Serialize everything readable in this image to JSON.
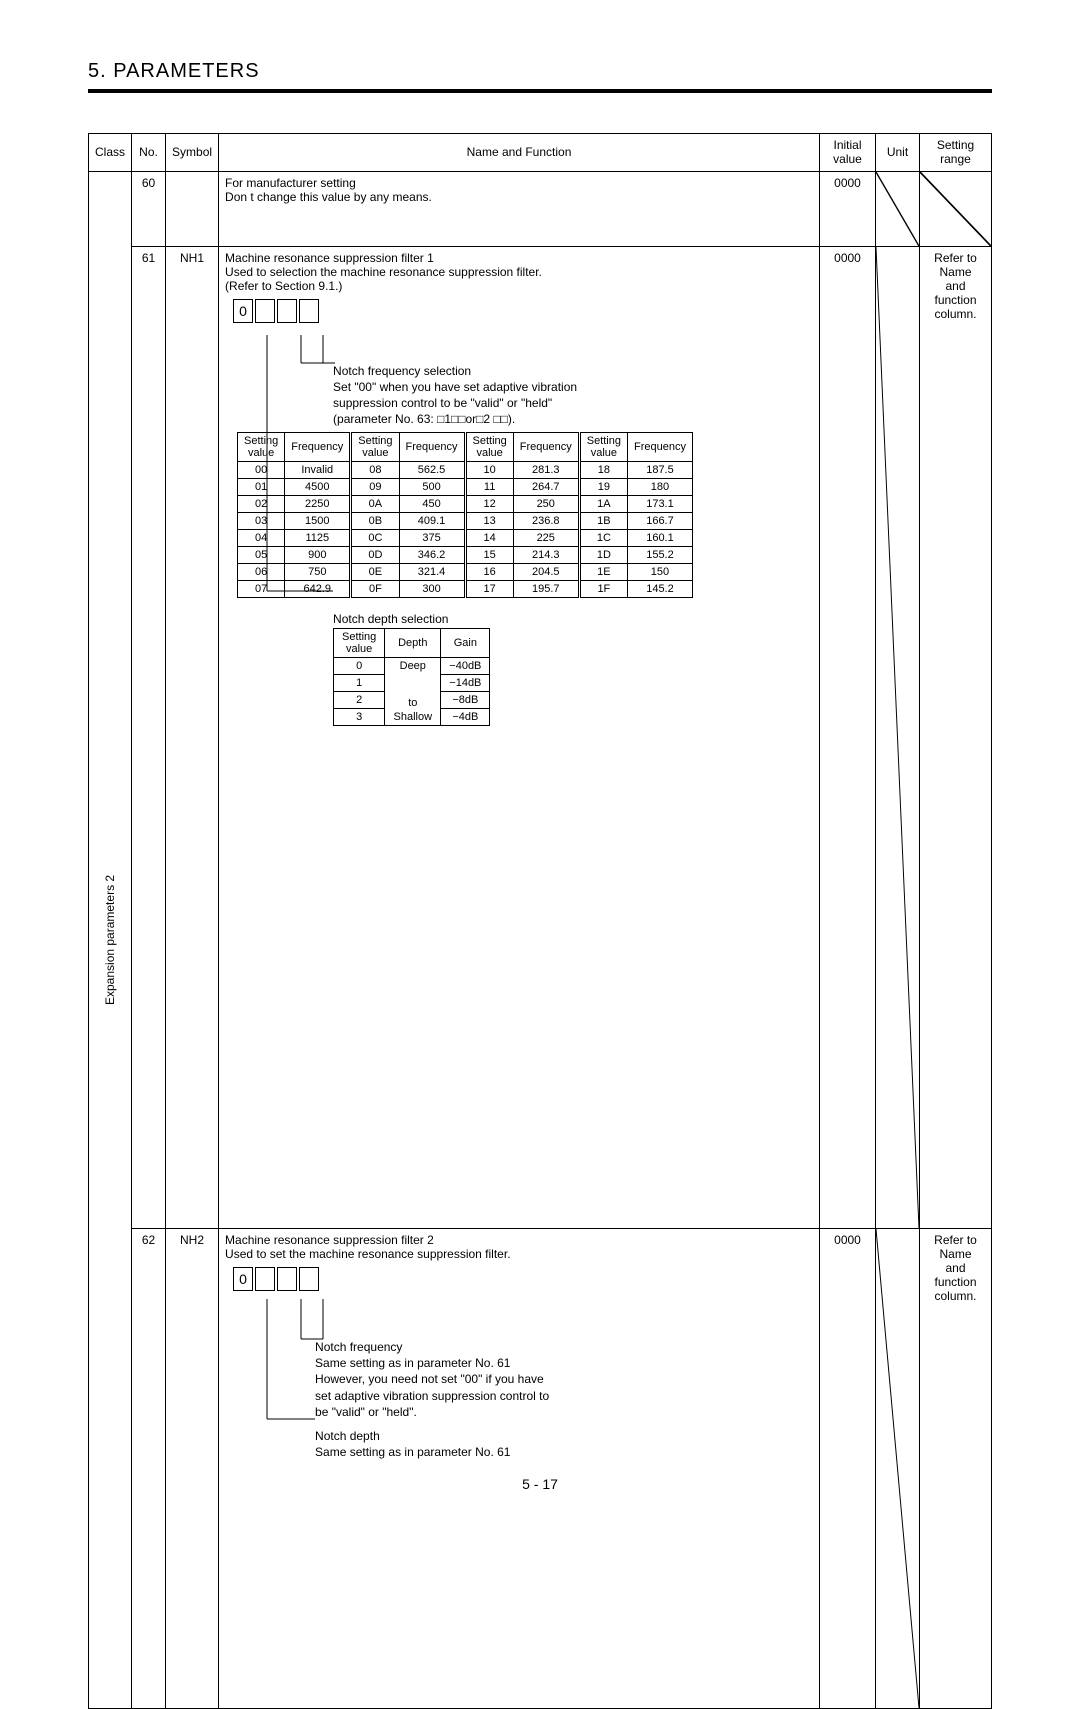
{
  "page": {
    "section_title": "5. PARAMETERS",
    "page_number": "5 -  17"
  },
  "headers": {
    "class": "Class",
    "no": "No.",
    "symbol": "Symbol",
    "name_func": "Name and Function",
    "initial_value": "Initial value",
    "unit": "Unit",
    "setting_range": "Setting range"
  },
  "class_label": "Expansion parameters 2",
  "rows": {
    "r60": {
      "no": "60",
      "symbol": "",
      "name_l1": "For manufacturer setting",
      "name_l2": "Don t change this value by any means.",
      "initial": "0000",
      "unit": "",
      "range": ""
    },
    "r61": {
      "no": "61",
      "symbol": "NH1",
      "title": "Machine resonance suppression filter 1",
      "desc1": "Used to selection the machine resonance suppression filter.",
      "desc2": "(Refer to Section 9.1.)",
      "box0": "0",
      "notch_freq_sel_label": "Notch frequency selection",
      "notch_freq_sel_note1": "Set \"00\" when you have set adaptive vibration",
      "notch_freq_sel_note2": "suppression control to be \"valid\" or \"held\"",
      "notch_freq_sel_note3": "(parameter No. 63: □1□□or□2 □□).",
      "freq_head_sv": "Setting value",
      "freq_head_f": "Frequency",
      "freq_rows": [
        [
          "00",
          "Invalid",
          "08",
          "562.5",
          "10",
          "281.3",
          "18",
          "187.5"
        ],
        [
          "01",
          "4500",
          "09",
          "500",
          "11",
          "264.7",
          "19",
          "180"
        ],
        [
          "02",
          "2250",
          "0A",
          "450",
          "12",
          "250",
          "1A",
          "173.1"
        ],
        [
          "03",
          "1500",
          "0B",
          "409.1",
          "13",
          "236.8",
          "1B",
          "166.7"
        ],
        [
          "04",
          "1125",
          "0C",
          "375",
          "14",
          "225",
          "1C",
          "160.1"
        ],
        [
          "05",
          "900",
          "0D",
          "346.2",
          "15",
          "214.3",
          "1D",
          "155.2"
        ],
        [
          "06",
          "750",
          "0E",
          "321.4",
          "16",
          "204.5",
          "1E",
          "150"
        ],
        [
          "07",
          "642.9",
          "0F",
          "300",
          "17",
          "195.7",
          "1F",
          "145.2"
        ]
      ],
      "depth_label": "Notch depth selection",
      "depth_head_sv": "Setting value",
      "depth_head_d": "Depth",
      "depth_head_g": "Gain",
      "depth_rows_sv": [
        "0",
        "1",
        "2",
        "3"
      ],
      "depth_words_top": "Deep",
      "depth_words_mid": "to",
      "depth_words_bot": "Shallow",
      "depth_gain": [
        "−40dB",
        "−14dB",
        "−8dB",
        "−4dB"
      ],
      "initial": "0000",
      "range_l1": "Refer to",
      "range_l2": "Name",
      "range_l3": "and",
      "range_l4": "function",
      "range_l5": "column."
    },
    "r62": {
      "no": "62",
      "symbol": "NH2",
      "title": "Machine resonance suppression filter 2",
      "desc1": "Used to set the machine resonance suppression filter.",
      "box0": "0",
      "nf_label": "Notch frequency",
      "nf_l1": "Same setting as in parameter No. 61",
      "nf_l2": "However, you need not set \"00\" if you have",
      "nf_l3": "set adaptive vibration suppression control to",
      "nf_l4": "be \"valid\" or \"held\".",
      "nd_label": "Notch depth",
      "nd_l1": "Same setting as in parameter No. 61",
      "initial": "0000",
      "range_l1": "Refer to",
      "range_l2": "Name",
      "range_l3": "and",
      "range_l4": "function",
      "range_l5": "column."
    }
  }
}
